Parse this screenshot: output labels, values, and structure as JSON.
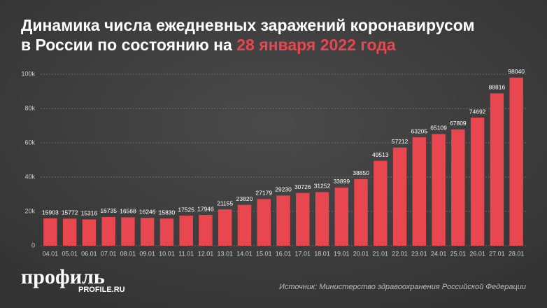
{
  "chart_data": {
    "type": "bar",
    "title": "Динамика числа ежедневных заражений коронавирусом в России по состоянию на",
    "title_highlight": "28 января 2022 года",
    "categories": [
      "04.01",
      "05.01",
      "06.01",
      "07.01",
      "08.01",
      "09.01",
      "10.01",
      "11.01",
      "12.01",
      "13.01",
      "14.01",
      "15.01",
      "16.01",
      "17.01",
      "18.01",
      "19.01",
      "20.01",
      "21.01",
      "22.01",
      "23.01",
      "24.01",
      "25.01",
      "26.01",
      "27.01",
      "28.01"
    ],
    "values": [
      15903,
      15772,
      15316,
      16735,
      16568,
      16246,
      15830,
      17525,
      17946,
      21155,
      23820,
      27179,
      29230,
      30726,
      31252,
      33899,
      38850,
      49513,
      57212,
      63205,
      65109,
      67809,
      74692,
      88816,
      98040
    ],
    "color": "#e8474f",
    "ylim": [
      0,
      100000
    ],
    "yticks": [
      0,
      {
        "value": 20000,
        "label": "20k"
      },
      {
        "value": 40000,
        "label": "40k"
      },
      {
        "value": 60000,
        "label": "60k"
      },
      {
        "value": 80000,
        "label": "80k"
      },
      {
        "value": 100000,
        "label": "100k"
      }
    ],
    "grid": true
  },
  "logo": {
    "name": "профиль",
    "site": "PROFILE.RU"
  },
  "source": "Источник: Министерство здравоохранения Российской Федерации"
}
